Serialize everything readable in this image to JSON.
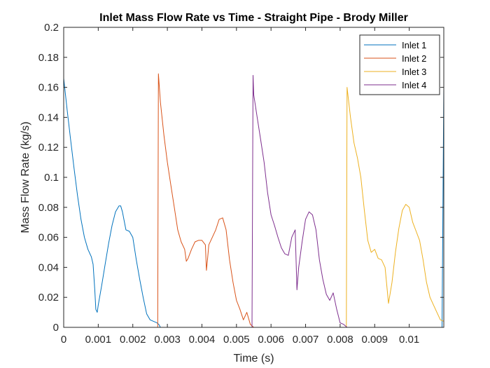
{
  "chart_data": {
    "type": "line",
    "title": "Inlet Mass Flow Rate vs Time - Straight Pipe - Brody Miller",
    "xlabel": "Time (s)",
    "ylabel": "Mass Flow Rate (kg/s)",
    "xlim": [
      0,
      0.011
    ],
    "ylim": [
      0,
      0.2
    ],
    "x_ticks": [
      0,
      0.001,
      0.002,
      0.003,
      0.004,
      0.005,
      0.006,
      0.007,
      0.008,
      0.009,
      0.01
    ],
    "x_tick_labels": [
      "0",
      "0.001",
      "0.002",
      "0.003",
      "0.004",
      "0.005",
      "0.006",
      "0.007",
      "0.008",
      "0.009",
      "0.01"
    ],
    "y_ticks": [
      0,
      0.02,
      0.04,
      0.06,
      0.08,
      0.1,
      0.12,
      0.14,
      0.16,
      0.18,
      0.2
    ],
    "y_tick_labels": [
      "0",
      "0.02",
      "0.04",
      "0.06",
      "0.08",
      "0.1",
      "0.12",
      "0.14",
      "0.16",
      "0.18",
      "0.2"
    ],
    "grid": false,
    "legend_position": "top-right",
    "series": [
      {
        "name": "Inlet 1",
        "color": "#0072BD",
        "x": [
          0,
          0.0001,
          0.0002,
          0.0003,
          0.0004,
          0.0005,
          0.0006,
          0.0007,
          0.0008,
          0.00085,
          0.0009,
          0.00093,
          0.00097,
          0.001,
          0.0011,
          0.0012,
          0.0013,
          0.0014,
          0.0015,
          0.0016,
          0.00165,
          0.0017,
          0.0018,
          0.0019,
          0.002,
          0.0021,
          0.0022,
          0.0023,
          0.0024,
          0.0025,
          0.0026,
          0.0027,
          0.00275,
          0.0028,
          0.005,
          0.008,
          0.01095,
          0.011
        ],
        "y": [
          0.166,
          0.145,
          0.125,
          0.106,
          0.088,
          0.072,
          0.06,
          0.052,
          0.047,
          0.042,
          0.025,
          0.012,
          0.01,
          0.015,
          0.028,
          0.042,
          0.056,
          0.068,
          0.077,
          0.081,
          0.081,
          0.077,
          0.065,
          0.064,
          0.06,
          0.045,
          0.032,
          0.02,
          0.009,
          0.005,
          0.004,
          0.003,
          0.002,
          0,
          0,
          0,
          0,
          0.16
        ]
      },
      {
        "name": "Inlet 2",
        "color": "#D95319",
        "x": [
          0,
          0.00272,
          0.00274,
          0.0028,
          0.0029,
          0.003,
          0.0031,
          0.0032,
          0.0033,
          0.0034,
          0.0035,
          0.00355,
          0.0036,
          0.0037,
          0.0038,
          0.0039,
          0.004,
          0.0041,
          0.00413,
          0.00416,
          0.0042,
          0.0043,
          0.0044,
          0.0045,
          0.0046,
          0.0047,
          0.0048,
          0.0049,
          0.005,
          0.0051,
          0.0052,
          0.0053,
          0.0054,
          0.00545,
          0.0055,
          0.008,
          0.011
        ],
        "y": [
          0,
          0,
          0.169,
          0.15,
          0.128,
          0.11,
          0.095,
          0.08,
          0.065,
          0.057,
          0.052,
          0.044,
          0.046,
          0.052,
          0.057,
          0.058,
          0.058,
          0.055,
          0.038,
          0.045,
          0.055,
          0.06,
          0.065,
          0.072,
          0.073,
          0.065,
          0.045,
          0.03,
          0.018,
          0.012,
          0.005,
          0.01,
          0.002,
          0.001,
          0,
          0,
          0
        ]
      },
      {
        "name": "Inlet 3",
        "color": "#EDB120",
        "x": [
          0,
          0.0054,
          0.0058,
          0.008,
          0.00818,
          0.0082,
          0.0083,
          0.0084,
          0.0085,
          0.0086,
          0.0087,
          0.0088,
          0.0089,
          0.009,
          0.0091,
          0.0092,
          0.0093,
          0.0094,
          0.0095,
          0.0096,
          0.0097,
          0.0098,
          0.0099,
          0.01,
          0.0101,
          0.0102,
          0.0103,
          0.0104,
          0.0105,
          0.0106,
          0.0107,
          0.0108,
          0.0109,
          0.011
        ],
        "y": [
          0,
          0,
          0,
          0,
          0,
          0.16,
          0.14,
          0.123,
          0.113,
          0.1,
          0.078,
          0.058,
          0.05,
          0.052,
          0.046,
          0.045,
          0.04,
          0.016,
          0.03,
          0.05,
          0.066,
          0.078,
          0.082,
          0.08,
          0.07,
          0.064,
          0.058,
          0.045,
          0.03,
          0.02,
          0.015,
          0.01,
          0.005,
          0.004
        ]
      },
      {
        "name": "Inlet 4",
        "color": "#7E2F8E",
        "x": [
          0,
          0.00545,
          0.00548,
          0.0055,
          0.0056,
          0.0057,
          0.0058,
          0.0059,
          0.006,
          0.0061,
          0.0062,
          0.0063,
          0.0064,
          0.0065,
          0.0066,
          0.0067,
          0.00675,
          0.0068,
          0.0069,
          0.007,
          0.0071,
          0.0072,
          0.0073,
          0.0074,
          0.0075,
          0.0076,
          0.0077,
          0.0078,
          0.0079,
          0.008,
          0.0081,
          0.00815,
          0.0082,
          0.011
        ],
        "y": [
          0,
          0,
          0.168,
          0.155,
          0.14,
          0.125,
          0.11,
          0.09,
          0.075,
          0.068,
          0.06,
          0.053,
          0.049,
          0.048,
          0.06,
          0.065,
          0.025,
          0.04,
          0.057,
          0.072,
          0.077,
          0.075,
          0.065,
          0.045,
          0.032,
          0.022,
          0.018,
          0.023,
          0.012,
          0.003,
          0.002,
          0.001,
          0,
          0
        ]
      }
    ]
  }
}
